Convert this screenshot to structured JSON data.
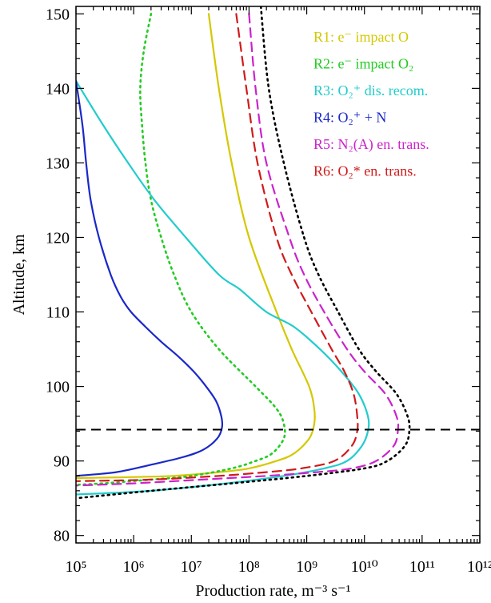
{
  "chart_data": {
    "type": "line",
    "xlabel": "Production rate, m⁻³ s⁻¹",
    "ylabel": "Altitude, km",
    "xscale": "log",
    "xlim": [
      100000,
      1000000000000
    ],
    "ylim": [
      79,
      151
    ],
    "grid": false,
    "legend_placement": "top-right",
    "x_tick_labels": [
      "10⁵",
      "10⁶",
      "10⁷",
      "10⁸",
      "10⁹",
      "10¹⁰",
      "10¹¹",
      "10¹²"
    ],
    "y_tick_labels": [
      "80",
      "90",
      "100",
      "110",
      "120",
      "130",
      "140",
      "150"
    ],
    "reference_line": {
      "altitude": 94.2,
      "style": "dashed",
      "color": "#000000"
    },
    "series": [
      {
        "name": "R1: e⁻ impact O",
        "color": "#d4c800",
        "dash": "solid",
        "points": [
          [
            150,
            20000000.0
          ],
          [
            140,
            30000000.0
          ],
          [
            130,
            50000000.0
          ],
          [
            120,
            100000000.0
          ],
          [
            110,
            300000000.0
          ],
          [
            105,
            550000000.0
          ],
          [
            100,
            1100000000.0
          ],
          [
            97,
            1350000000.0
          ],
          [
            95,
            1350000000.0
          ],
          [
            93,
            1100000000.0
          ],
          [
            91,
            600000000.0
          ],
          [
            90,
            300000000.0
          ],
          [
            89,
            100000000.0
          ],
          [
            88.5,
            30000000.0
          ],
          [
            88,
            5000000.0
          ],
          [
            87.8,
            500000.0
          ],
          [
            87.7,
            100000.0
          ]
        ]
      },
      {
        "name": "R2: e⁻ impact O₂",
        "color": "#22cc22",
        "dash": "dotted",
        "points": [
          [
            150,
            2000000.0
          ],
          [
            145,
            1500000.0
          ],
          [
            140,
            1300000.0
          ],
          [
            135,
            1400000.0
          ],
          [
            130,
            1600000.0
          ],
          [
            125,
            2000000.0
          ],
          [
            120,
            3000000.0
          ],
          [
            115,
            5000000.0
          ],
          [
            110,
            10000000.0
          ],
          [
            105,
            30000000.0
          ],
          [
            100,
            130000000.0
          ],
          [
            97,
            300000000.0
          ],
          [
            95,
            400000000.0
          ],
          [
            93,
            400000000.0
          ],
          [
            91,
            250000000.0
          ],
          [
            90,
            130000000.0
          ],
          [
            89,
            50000000.0
          ],
          [
            88,
            10000000.0
          ],
          [
            87.5,
            2000000.0
          ],
          [
            87,
            300000.0
          ],
          [
            86.8,
            100000.0
          ]
        ]
      },
      {
        "name": "R3: O₂⁺ dis. recom.",
        "color": "#22cccc",
        "dash": "solid",
        "points": [
          [
            141,
            100000.0
          ],
          [
            140,
            120000.0
          ],
          [
            135,
            300000.0
          ],
          [
            130,
            800000.0
          ],
          [
            125,
            2300000.0
          ],
          [
            120,
            8000000.0
          ],
          [
            115,
            30000000.0
          ],
          [
            113,
            70000000.0
          ],
          [
            110,
            200000000.0
          ],
          [
            108,
            600000000.0
          ],
          [
            105,
            1700000000.0
          ],
          [
            102,
            4000000000.0
          ],
          [
            99,
            8000000000.0
          ],
          [
            96,
            11500000000.0
          ],
          [
            94,
            11500000000.0
          ],
          [
            92,
            9000000000.0
          ],
          [
            90,
            5000000000.0
          ],
          [
            89,
            2000000000.0
          ],
          [
            88,
            400000000.0
          ],
          [
            87,
            40000000.0
          ],
          [
            86,
            2000000.0
          ],
          [
            85.5,
            100000.0
          ]
        ]
      },
      {
        "name": "R4: O₂⁺ + N",
        "color": "#1a28c8",
        "dash": "solid",
        "points": [
          [
            141,
            100000.0
          ],
          [
            135,
            130000.0
          ],
          [
            130,
            150000.0
          ],
          [
            125,
            180000.0
          ],
          [
            120,
            250000.0
          ],
          [
            115,
            400000.0
          ],
          [
            112,
            600000.0
          ],
          [
            110,
            900000.0
          ],
          [
            108,
            1600000.0
          ],
          [
            106,
            3000000.0
          ],
          [
            104,
            6000000.0
          ],
          [
            102,
            11000000.0
          ],
          [
            100,
            18000000.0
          ],
          [
            98,
            27000000.0
          ],
          [
            96,
            33000000.0
          ],
          [
            94.5,
            34000000.0
          ],
          [
            93,
            28000000.0
          ],
          [
            91.5,
            16000000.0
          ],
          [
            90.5,
            7000000.0
          ],
          [
            89.5,
            2000000.0
          ],
          [
            88.5,
            500000.0
          ],
          [
            88,
            100000.0
          ]
        ]
      },
      {
        "name": "R5: N₂(A) en. trans.",
        "color": "#cc22cc",
        "dash": "dashed",
        "points": [
          [
            150,
            100000000.0
          ],
          [
            140,
            130000000.0
          ],
          [
            130,
            200000000.0
          ],
          [
            120,
            500000000.0
          ],
          [
            115,
            900000000.0
          ],
          [
            110,
            2000000000.0
          ],
          [
            105,
            5000000000.0
          ],
          [
            102,
            10000000000.0
          ],
          [
            99,
            23000000000.0
          ],
          [
            96,
            36000000000.0
          ],
          [
            94,
            38000000000.0
          ],
          [
            92,
            32000000000.0
          ],
          [
            90,
            16000000000.0
          ],
          [
            89,
            6000000000.0
          ],
          [
            88.5,
            1500000000.0
          ],
          [
            88,
            200000000.0
          ],
          [
            87.5,
            15000000.0
          ],
          [
            87,
            1000000.0
          ],
          [
            86.7,
            100000.0
          ]
        ]
      },
      {
        "name": "R6: O₂* en. trans.",
        "color": "#d01a1a",
        "dash": "dashed",
        "points": [
          [
            150,
            60000000.0
          ],
          [
            140,
            90000000.0
          ],
          [
            130,
            140000000.0
          ],
          [
            120,
            300000000.0
          ],
          [
            115,
            550000000.0
          ],
          [
            110,
            1200000000.0
          ],
          [
            105,
            2700000000.0
          ],
          [
            102,
            4500000000.0
          ],
          [
            99,
            6500000000.0
          ],
          [
            96,
            7500000000.0
          ],
          [
            94,
            7500000000.0
          ],
          [
            92,
            6000000000.0
          ],
          [
            90,
            3000000000.0
          ],
          [
            89,
            800000000.0
          ],
          [
            88.5,
            200000000.0
          ],
          [
            88,
            30000000.0
          ],
          [
            87.5,
            2000000.0
          ],
          [
            87.3,
            100000.0
          ]
        ]
      },
      {
        "name": "",
        "color": "#000000",
        "dash": "dotted",
        "points": [
          [
            151,
            160000000.0
          ],
          [
            140,
            220000000.0
          ],
          [
            130,
            400000000.0
          ],
          [
            120,
            900000000.0
          ],
          [
            115,
            1600000000.0
          ],
          [
            110,
            3500000000.0
          ],
          [
            105,
            8000000000.0
          ],
          [
            102,
            16000000000.0
          ],
          [
            99,
            36000000000.0
          ],
          [
            96,
            56000000000.0
          ],
          [
            94,
            60000000000.0
          ],
          [
            92,
            50000000000.0
          ],
          [
            90,
            25000000000.0
          ],
          [
            89,
            10000000000.0
          ],
          [
            88,
            1000000000.0
          ],
          [
            87,
            50000000.0
          ],
          [
            86,
            2000000.0
          ],
          [
            85,
            100000.0
          ]
        ]
      }
    ]
  }
}
